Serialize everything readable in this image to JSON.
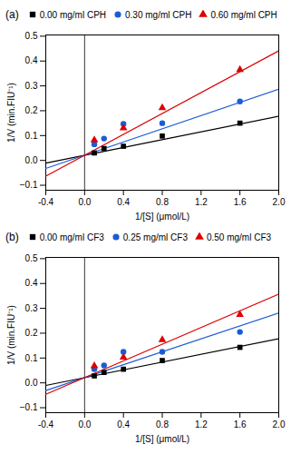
{
  "chart_data": [
    {
      "type": "scatter",
      "title": "(a)",
      "xlabel": "1/[S] (μmol/L)",
      "ylabel": "1/V (min.FIU⁻¹)",
      "xlim": [
        -0.4,
        2.0
      ],
      "ylim": [
        -0.12,
        0.505
      ],
      "xticks": [
        -0.4,
        {
          "value": 0.0,
          "label": "0.0"
        },
        0.4,
        0.8,
        1.2,
        1.6,
        {
          "value": 2.0,
          "label": "2.0"
        }
      ],
      "yticks": [
        {
          "value": -0.1,
          "label": "−0.1"
        },
        {
          "value": 0.0,
          "label": "0.0"
        },
        0.1,
        0.2,
        0.3,
        0.4,
        0.5
      ],
      "vline_x": 0,
      "series": [
        {
          "name": "0.00 mg/ml CPH",
          "color": "#000000",
          "marker": "square",
          "x": [
            0.1,
            0.2,
            0.4,
            0.8,
            1.6
          ],
          "values": [
            0.03,
            0.048,
            0.057,
            0.098,
            0.15
          ],
          "line_x": [
            -0.4,
            2.0
          ],
          "line_values": [
            -0.0109,
            0.1775
          ]
        },
        {
          "name": "0.30 mg/ml CPH",
          "color": "#1a5cd6",
          "marker": "circle",
          "x": [
            0.1,
            0.2,
            0.4,
            0.8,
            1.6
          ],
          "values": [
            0.065,
            0.088,
            0.147,
            0.15,
            0.237
          ],
          "line_x": [
            -0.4,
            2.0
          ],
          "line_values": [
            -0.0322,
            0.287
          ]
        },
        {
          "name": "0.60 mg/ml CPH",
          "color": "#dd0000",
          "marker": "triangle",
          "x": [
            0.1,
            0.4,
            0.8,
            1.6
          ],
          "values": [
            0.082,
            0.13,
            0.212,
            0.365
          ],
          "line_x": [
            -0.4,
            2.0
          ],
          "line_values": [
            -0.063,
            0.441
          ]
        }
      ]
    },
    {
      "type": "scatter",
      "title": "(b)",
      "xlabel": "1/[S] (μmol/L)",
      "ylabel": "1/V (min.FIU⁻¹)",
      "xlim": [
        -0.4,
        2.0
      ],
      "ylim": [
        -0.12,
        0.505
      ],
      "xticks": [
        -0.4,
        {
          "value": 0.0,
          "label": "0.0"
        },
        0.4,
        0.8,
        1.2,
        1.6,
        {
          "value": 2.0,
          "label": "2.0"
        }
      ],
      "yticks": [
        {
          "value": -0.1,
          "label": "−0.1"
        },
        {
          "value": 0.0,
          "label": "0.0"
        },
        0.1,
        0.2,
        0.3,
        0.4,
        0.5
      ],
      "vline_x": 0,
      "series": [
        {
          "name": "0.00 mg/ml CF3",
          "color": "#000000",
          "marker": "square",
          "x": [
            0.1,
            0.2,
            0.4,
            0.8,
            1.6
          ],
          "values": [
            0.028,
            0.042,
            0.055,
            0.09,
            0.143
          ],
          "line_x": [
            -0.4,
            2.0
          ],
          "line_values": [
            -0.0104,
            0.178
          ]
        },
        {
          "name": "0.25 mg/ml CF3",
          "color": "#1a5cd6",
          "marker": "circle",
          "x": [
            0.1,
            0.2,
            0.4,
            0.8,
            1.6
          ],
          "values": [
            0.055,
            0.07,
            0.125,
            0.125,
            0.205
          ],
          "line_x": [
            -0.4,
            2.0
          ],
          "line_values": [
            -0.031,
            0.281
          ]
        },
        {
          "name": "0.50 mg/ml CF3",
          "color": "#dd0000",
          "marker": "triangle",
          "x": [
            0.1,
            0.4,
            0.8,
            1.6
          ],
          "values": [
            0.068,
            0.103,
            0.173,
            0.275
          ],
          "line_x": [
            -0.4,
            2.0
          ],
          "line_values": [
            -0.0462,
            0.357
          ]
        }
      ]
    }
  ]
}
